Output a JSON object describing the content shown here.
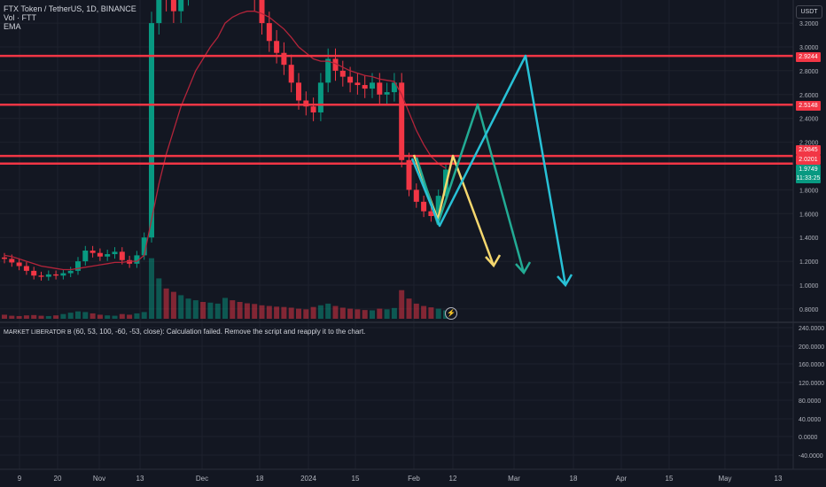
{
  "legend": {
    "symbol": "FTX Token / TetherUS, 1D, BINANCE",
    "volume": "Vol · FTT",
    "ema": "EMA"
  },
  "indicator": {
    "name": "MARKET LIBERATOR B",
    "message": "(60, 53, 100, -60, -53, close): Calculation failed. Remove the script and reapply it to the chart."
  },
  "currency_button": "USDT",
  "price_axis": {
    "ticks": [
      "3.2000",
      "3.0000",
      "2.8000",
      "2.6000",
      "2.4000",
      "2.2000",
      "1.8000",
      "1.6000",
      "1.4000",
      "1.2000",
      "1.0000",
      "0.8000"
    ],
    "labels": [
      {
        "text": "2.9244",
        "color": "#f23645"
      },
      {
        "text": "2.5148",
        "color": "#f23645"
      },
      {
        "text": "2.0845",
        "color": "#f23645"
      },
      {
        "text": "2.0201",
        "color": "#f23645"
      }
    ],
    "last_price": {
      "price": "1.9749",
      "countdown": "11:33:25",
      "color": "#089981"
    }
  },
  "indicator_axis": {
    "ticks": [
      "240.0000",
      "200.0000",
      "160.0000",
      "120.0000",
      "80.0000",
      "40.0000",
      "0.0000",
      "-40.0000"
    ]
  },
  "time_axis": {
    "labels": [
      "9",
      "20",
      "Nov",
      "13",
      "Dec",
      "18",
      "2024",
      "15",
      "Feb",
      "12",
      "Mar",
      "18",
      "Apr",
      "15",
      "May",
      "13"
    ]
  },
  "colors": {
    "background": "#131722",
    "grid": "#1e222d",
    "up": "#089981",
    "down": "#f23645",
    "ema": "#b2243a",
    "horizontal_lines": "#f23645",
    "projection_yellow": "#f5d76e",
    "projection_teal": "#22ab94",
    "projection_cyan": "#28c1d6"
  },
  "chart_data": {
    "type": "candlestick",
    "symbol": "FTTUSDT",
    "timeframe": "1D",
    "approx_close": [
      1.22,
      1.19,
      1.16,
      1.12,
      1.08,
      1.07,
      1.09,
      1.08,
      1.1,
      1.12,
      1.2,
      1.29,
      1.27,
      1.24,
      1.26,
      1.28,
      1.21,
      1.18,
      1.25,
      1.4,
      3.2,
      3.5,
      3.4,
      3.3,
      3.45,
      3.5,
      3.6,
      3.5,
      3.55,
      3.6,
      3.8,
      3.6,
      3.55,
      3.5,
      3.4,
      3.2,
      3.05,
      2.95,
      2.85,
      2.7,
      2.55,
      2.5,
      2.45,
      2.7,
      2.9,
      2.8,
      2.75,
      2.7,
      2.68,
      2.65,
      2.7,
      2.6,
      2.62,
      2.7,
      2.05,
      1.8,
      1.7,
      1.62,
      1.58,
      1.75,
      1.97
    ],
    "ema_approx": [
      1.25,
      1.24,
      1.22,
      1.2,
      1.18,
      1.16,
      1.15,
      1.14,
      1.13,
      1.13,
      1.14,
      1.15,
      1.16,
      1.17,
      1.18,
      1.19,
      1.19,
      1.2,
      1.2,
      1.25,
      1.55,
      1.85,
      2.1,
      2.3,
      2.5,
      2.65,
      2.8,
      2.9,
      3.0,
      3.08,
      3.2,
      3.25,
      3.28,
      3.3,
      3.3,
      3.28,
      3.25,
      3.2,
      3.15,
      3.08,
      3.0,
      2.95,
      2.9,
      2.88,
      2.88,
      2.86,
      2.83,
      2.8,
      2.78,
      2.76,
      2.75,
      2.73,
      2.72,
      2.71,
      2.6,
      2.45,
      2.3,
      2.18,
      2.08,
      2.02,
      1.98
    ],
    "horizontal_levels": [
      2.9244,
      2.5148,
      2.0845,
      2.0201
    ],
    "volume_approx": [
      12,
      9,
      8,
      10,
      11,
      9,
      8,
      10,
      14,
      18,
      22,
      20,
      16,
      12,
      10,
      9,
      14,
      12,
      16,
      20,
      180,
      120,
      90,
      80,
      70,
      60,
      55,
      50,
      48,
      45,
      62,
      55,
      50,
      46,
      44,
      40,
      38,
      36,
      35,
      33,
      30,
      28,
      35,
      40,
      45,
      38,
      33,
      30,
      28,
      26,
      25,
      30,
      28,
      32,
      85,
      60,
      45,
      38,
      34,
      30,
      25
    ],
    "projections": [
      {
        "color": "yellow",
        "points": [
          [
            2.02,
            1.9
          ],
          [
            1.55,
            1.6
          ],
          [
            2.07,
            1.78
          ],
          [
            1.15,
            1.92
          ]
        ]
      },
      {
        "color": "teal",
        "points": [
          [
            1.95,
            1.9
          ],
          [
            1.55,
            1.6
          ],
          [
            2.52,
            1.98
          ],
          [
            1.12,
            2.0
          ]
        ]
      },
      {
        "color": "cyan",
        "points": [
          [
            1.9,
            1.9
          ],
          [
            1.5,
            1.6
          ],
          [
            2.94,
            2.12
          ],
          [
            1.01,
            2.2
          ]
        ]
      }
    ]
  }
}
